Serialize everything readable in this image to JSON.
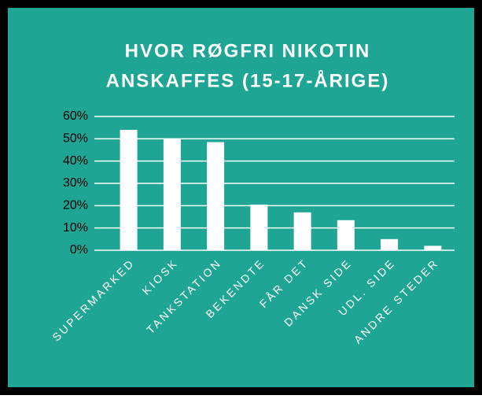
{
  "chart_data": {
    "type": "bar",
    "title": [
      "HVOR RØGFRI NIKOTIN",
      "ANSKAFFES (15-17-ÅRIGE)"
    ],
    "categories": [
      "SUPERMARKED",
      "KIOSK",
      "TANKSTATION",
      "BEKENDTE",
      "FÅR DET",
      "DANSK SIDE",
      "UDL. SIDE",
      "ANDRE STEDER"
    ],
    "values": [
      54,
      50,
      48.5,
      20.5,
      17,
      13.5,
      5,
      2
    ],
    "color": "#ffffff",
    "ylim": [
      0,
      60
    ],
    "yticks": [
      {
        "value": 0,
        "label": "0%"
      },
      {
        "value": 10,
        "label": "10%"
      },
      {
        "value": 20,
        "label": "20%"
      },
      {
        "value": 30,
        "label": "30%"
      },
      {
        "value": 40,
        "label": "40%"
      },
      {
        "value": 50,
        "label": "50%"
      },
      {
        "value": 60,
        "label": "60%"
      }
    ],
    "grid": true
  }
}
